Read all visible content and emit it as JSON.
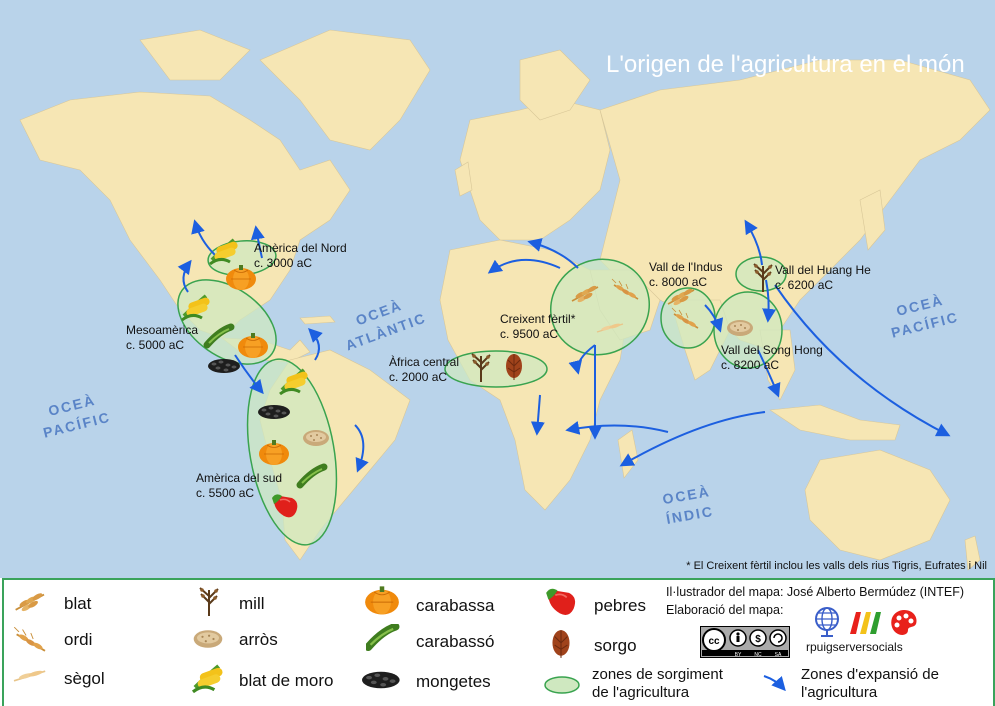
{
  "title": "L'origen de l'agricultura en el món",
  "regions": {
    "north_america": {
      "name": "Amèrica del Nord",
      "date": "c. 3000 aC"
    },
    "mesoamerica": {
      "name": "Mesoamèrica",
      "date": "c. 5000 aC"
    },
    "south_america": {
      "name": "Amèrica del sud",
      "date": "c. 5500 aC"
    },
    "central_africa": {
      "name": "Àfrica central",
      "date": "c. 2000 aC"
    },
    "fertile_crescent": {
      "name": "Creixent fèrtil*",
      "date": "c. 9500 aC"
    },
    "indus": {
      "name": "Vall de l'Indus",
      "date": "c. 8000 aC"
    },
    "huang_he": {
      "name": "Vall del Huang He",
      "date": "c. 6200 aC"
    },
    "song_hong": {
      "name": "Vall del Song Hong",
      "date": "c. 8200 aC"
    }
  },
  "oceans": {
    "pacific_west": [
      "OCEÀ",
      "PACÍFIC"
    ],
    "atlantic": [
      "OCEÀ",
      "ATLÀNTIC"
    ],
    "pacific_east": [
      "OCEÀ",
      "PACÍFIC"
    ],
    "indian": [
      "OCEÀ",
      "ÍNDIC"
    ]
  },
  "footnote": "* El Creixent fèrtil inclou les valls dels rius Tigris, Eufrates i Nil",
  "legend": {
    "crops": [
      "blat",
      "ordi",
      "sègol",
      "mill",
      "arròs",
      "blat de moro",
      "carabassa",
      "carabassó",
      "mongetes",
      "pebres",
      "sorgo"
    ],
    "zones": [
      "zones de sorgiment",
      "de l'agricultura"
    ],
    "expansion": [
      "Zones d'expansió de",
      "l'agricultura"
    ],
    "illustrator": "Il·lustrador del mapa: José Alberto Bermúdez (INTEF)",
    "credits": "Elaboració del mapa:",
    "license": [
      "BY",
      "NC",
      "SA"
    ],
    "site": "rpuigserversocials"
  },
  "colors": {
    "ocean": "#b9d3ea",
    "land": "#f6e6b4",
    "zone_fill": "#cfe8c0",
    "zone_stroke": "#39a34f",
    "arrow": "#1c5fe0",
    "legend_border": "#3aa35b"
  },
  "icons": [
    "wheat-icon",
    "barley-icon",
    "rye-icon",
    "millet-icon",
    "rice-icon",
    "corn-icon",
    "pumpkin-icon",
    "zucchini-icon",
    "beans-icon",
    "pepper-icon",
    "sorghum-icon",
    "cc-license-icon",
    "globe-icon",
    "palette-icon"
  ]
}
